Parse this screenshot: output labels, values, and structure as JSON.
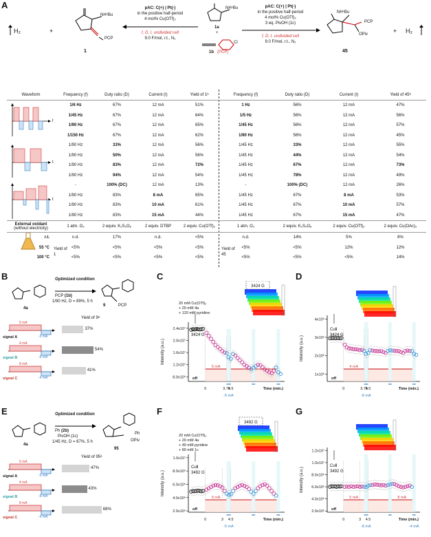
{
  "panel_labels": {
    "a": "A",
    "b": "B",
    "c": "C",
    "d": "D",
    "e": "E",
    "f": "F",
    "g": "G"
  },
  "scheme_a": {
    "h2": "H₂",
    "plus": "+",
    "product_left_id": "1",
    "product_left_groups": [
      "NHⁿBu",
      "PCP"
    ],
    "left_conditions": [
      "pAC: C(+) | Pt(-)",
      "in the positive half-period",
      "4 mol% Cu(OTf)₂",
      "f, D, I, undivided cell",
      "9.0 F/mol, r.t., N₂"
    ],
    "reagent_1a": "1a",
    "reagent_1a_group": "NHⁿBu",
    "reagent_1b": "1b",
    "reagent_1b_group": "(PCP)",
    "reagent_1b_cl": "Cl",
    "right_conditions": [
      "pAC: C(+) | Pt(-)",
      "in the positive half-period",
      "4 mol% Cu(OTf)₂",
      "3 eq. PivOH (1c)",
      "f, D, I, undivided cell",
      "9.0 F/mol, r.t., N₂"
    ],
    "product_right_id": "45",
    "product_right_groups": [
      "NHⁿBu",
      "PCP",
      "OPiv"
    ]
  },
  "table": {
    "headers": [
      "Waveform",
      "Frequency (f)",
      "Duty ratio (D)",
      "Current (I)",
      "Yield of 1ᵃ",
      "Frequency (f)",
      "Duty ratio (D)",
      "Current (I)",
      "Yield of 45ᵃ"
    ],
    "rows": [
      [
        "1/6 Hz",
        "67%",
        "12 mA",
        "51%",
        "1 Hz",
        "56%",
        "12 mA",
        "47%"
      ],
      [
        "1/45 Hz",
        "67%",
        "12 mA",
        "64%",
        "1/5 Hz",
        "56%",
        "12 mA",
        "56%"
      ],
      [
        "1/90 Hz",
        "67%",
        "12 mA",
        "65%",
        "1/45 Hz",
        "56%",
        "12 mA",
        "57%"
      ],
      [
        "1/150 Hz",
        "67%",
        "12 mA",
        "62%",
        "1/90 Hz",
        "56%",
        "12 mA",
        "45%"
      ],
      [
        "1/90 Hz",
        "33%",
        "12 mA",
        "56%",
        "1/45 Hz",
        "33%",
        "12 mA",
        "55%"
      ],
      [
        "1/90 Hz",
        "50%",
        "12 mA",
        "56%",
        "1/45 Hz",
        "44%",
        "12 mA",
        "54%"
      ],
      [
        "1/90 Hz",
        "83%",
        "12 mA",
        "72%",
        "1/45 Hz",
        "67%",
        "12 mA",
        "73%"
      ],
      [
        "1/90 Hz",
        "94%",
        "12 mA",
        "54%",
        "1/45 Hz",
        "78%",
        "12 mA",
        "49%"
      ],
      [
        "-",
        "100% (DC)",
        "12 mA",
        "13%",
        "-",
        "100% (DC)",
        "12 mA",
        "26%"
      ],
      [
        "1/90 Hz",
        "83%",
        "8 mA",
        "65%",
        "1/45 Hz",
        "67%",
        "8 mA",
        "53%"
      ],
      [
        "1/90 Hz",
        "83%",
        "10 mA",
        "61%",
        "1/45 Hz",
        "67%",
        "10 mA",
        "57%"
      ],
      [
        "1/90 Hz",
        "83%",
        "15 mA",
        "44%",
        "1/45 Hz",
        "67%",
        "15 mA",
        "47%"
      ]
    ],
    "external_label": "External oxidant",
    "external_sub": "(without electricity)",
    "external_row": [
      "1 atm. O₂",
      "2 equiv. K₂S₂O₈",
      "2 equiv. DTBP",
      "2 equiv. Cu(OTf)₂",
      "1 atm. O₂",
      "2 equiv. K₂S₂O₈",
      "2 equiv. Cu(OTf)₂",
      "2 equiv. Cu(OAc)₂"
    ],
    "temp_rows": [
      {
        "label": "r.t.",
        "values": [
          "n.d.",
          "17%",
          "n.d.",
          "<5%",
          "n.d.",
          "14%",
          "5%",
          "8%"
        ]
      },
      {
        "label": "55 °C",
        "values": [
          "<5%",
          "<5%",
          "<5%",
          "<5%",
          "<5%",
          "<5%",
          "12%",
          "12%"
        ]
      },
      {
        "label": "100 °C",
        "values": [
          "<5%",
          "<5%",
          "<5%",
          "<5%",
          "<5%",
          "<5%",
          "<5%",
          "14%"
        ]
      }
    ],
    "yield_of_1": "Yield of 1",
    "yield_of_45": "Yield of 45",
    "axis_t": "t"
  },
  "panel_b": {
    "reagent": "4a",
    "alkyne": "PCP",
    "alkyne_id": "(1b)",
    "arrow_top": "Optimized condition",
    "arrow_bottom": "1/90 Hz, D = 89%, 5 h",
    "product": "9",
    "product_group": "PCP",
    "yield_title": "Yield of 9ᵃ",
    "signals": [
      {
        "name": "signal A",
        "top": "5 mA",
        "bottom": "-5 mA",
        "yield": "37%",
        "yield_value": 37
      },
      {
        "name": "signal B",
        "top": "4 mA",
        "bottom": "-8 mA",
        "yield": "54%",
        "yield_value": 54
      },
      {
        "name": "signal C",
        "top": "8 mA",
        "bottom": "-4 mA",
        "yield": "41%",
        "yield_value": 41
      }
    ]
  },
  "panel_e": {
    "reagent": "4a",
    "alkyne": "Ph",
    "alkyne_id": "(2b)",
    "arrow_top": "Optimized condition",
    "arrow_mid": "PivOH (1c)",
    "arrow_bottom": "1/45 Hz, D = 67%, 5 h",
    "product": "95",
    "product_groups": [
      "Ph",
      "OPiv"
    ],
    "yield_title": "Yield of 95ᵃ",
    "signals": [
      {
        "name": "signal A",
        "top": "5 mA",
        "bottom": "-5 mA",
        "yield": "47%",
        "yield_value": 47
      },
      {
        "name": "signal B",
        "top": "4 mA",
        "bottom": "-8 mA",
        "yield": "43%",
        "yield_value": 43
      },
      {
        "name": "signal C",
        "top": "8 mA",
        "bottom": "-4 mA",
        "yield": "68%",
        "yield_value": 68
      }
    ]
  },
  "chart_data": [
    {
      "panel": "C",
      "type": "scatter",
      "legend": [
        "20 mM Cu(OTf)₂",
        "+ 20 mM 4a",
        "+ 120 mM pyridine"
      ],
      "ylabel": "Intensity (a.u.)",
      "xlabel": "Time (min.)",
      "ytick_labels": [
        "8.0x10⁶",
        "1.2x10⁷",
        "1.6x10⁷",
        "2.0x10⁷",
        "2.4x10⁷"
      ],
      "yticks": [
        8000000.0,
        12000000.0,
        16000000.0,
        20000000.0,
        24000000.0
      ],
      "ylim": [
        6500000.0,
        26000000.0
      ],
      "xtick_labels": [
        "0",
        "3.75",
        "4.5"
      ],
      "xticks": [
        0,
        3.75,
        4.5
      ],
      "annotation": "CuⅡ 3424 G",
      "inset_label": "3424 G",
      "off": "off",
      "pulse_top": "5 mA",
      "pulse_bottom": "-5 mA",
      "series": [
        {
          "name": "",
          "x": [
            -2.5,
            -2.2,
            -1.9,
            -1.6,
            -1.3,
            -1.0,
            -0.7,
            -0.4,
            0.2,
            0.6,
            1.0,
            1.4,
            1.8,
            2.2,
            2.6,
            3.0,
            3.4,
            3.75,
            4.1,
            4.5,
            4.9,
            5.3,
            5.7,
            6.1,
            6.5,
            6.9,
            7.3,
            7.7,
            8.1,
            8.5,
            8.9,
            9.3,
            9.7,
            10.1,
            10.5,
            10.9,
            11.3,
            11.7,
            12.1,
            12.5,
            12.9,
            13.3
          ],
          "y": [
            23500000.0,
            23700000.0,
            23600000.0,
            23800000.0,
            23700000.0,
            23600000.0,
            23700000.0,
            23800000.0,
            22500000.0,
            21500000.0,
            20500000.0,
            19500000.0,
            18500000.0,
            17800000.0,
            17200000.0,
            16500000.0,
            16000000.0,
            15800000.0,
            14500000.0,
            14000000.0,
            15500000.0,
            15000000.0,
            14200000.0,
            13500000.0,
            12800000.0,
            12000000.0,
            11500000.0,
            11000000.0,
            10500000.0,
            11000000.0,
            11500000.0,
            12000000.0,
            11800000.0,
            11200000.0,
            10500000.0,
            10000000.0,
            9500000.0,
            9200000.0,
            10000000.0,
            11000000.0,
            9500000.0,
            9000000.0
          ]
        }
      ]
    },
    {
      "panel": "D",
      "type": "scatter",
      "ylabel": "Intensity (a.u.)",
      "xlabel": "Time (min.)",
      "ytick_labels": [
        "1x10⁶",
        "2x10⁶",
        "3x10⁶",
        "4x10⁶"
      ],
      "yticks": [
        1000000.0,
        2000000.0,
        3000000.0,
        4000000.0
      ],
      "ylim": [
        600000.0,
        4200000.0
      ],
      "xtick_labels": [
        "0",
        "3.75",
        "4.5"
      ],
      "xticks": [
        0,
        3.75,
        4.5
      ],
      "annotation": "CuⅡ 3424 G",
      "off": "off",
      "pulse_top": "4 mA",
      "pulse_bottom": "-8 mA",
      "series": [
        {
          "name": "",
          "x": [
            -2.5,
            -2.2,
            -1.9,
            -1.6,
            -1.3,
            -1.0,
            -0.7,
            -0.4,
            0.2,
            0.6,
            1.0,
            1.4,
            1.8,
            2.2,
            2.6,
            3.0,
            3.4,
            3.75,
            4.1,
            4.5,
            4.9,
            5.3,
            5.7,
            6.1,
            6.5,
            6.9,
            7.3,
            7.7,
            8.1,
            8.5,
            8.9,
            9.3,
            9.7,
            10.1,
            10.5,
            10.9,
            11.3,
            11.7,
            12.1,
            12.5,
            12.9,
            13.3
          ],
          "y": [
            2950000.0,
            2960000.0,
            2970000.0,
            2950000.0,
            2960000.0,
            2970000.0,
            2950000.0,
            2960000.0,
            2600000.0,
            2450000.0,
            2400000.0,
            2380000.0,
            2360000.0,
            2350000.0,
            2340000.0,
            2300000.0,
            2320000.0,
            2250000.0,
            2100000.0,
            2150000.0,
            2300000.0,
            2280000.0,
            2260000.0,
            2250000.0,
            2240000.0,
            2250000.0,
            2200000.0,
            2150000.0,
            2250000.0,
            2300000.0,
            2280000.0,
            2270000.0,
            2260000.0,
            2250000.0,
            2200000.0,
            2150000.0,
            2250000.0,
            2280000.0,
            2260000.0,
            2250000.0,
            2100000.0,
            2050000.0
          ]
        }
      ]
    },
    {
      "panel": "F",
      "type": "scatter",
      "legend": [
        "20 mM Cu(OTf)₂",
        "+ 20 mM 4a",
        "+ 40 mM pyridine",
        "+ 80 mM 1c"
      ],
      "ylabel": "Intensity (a.u.)",
      "xlabel": "Time (min.)",
      "ytick_labels": [
        "2.0x10⁶",
        "4.0x10⁶",
        "6.0x10⁶",
        "8.0x10⁶",
        "1.0x10⁷"
      ],
      "yticks": [
        2000000.0,
        4000000.0,
        6000000.0,
        8000000.0,
        10000000.0
      ],
      "ylim": [
        1800000.0,
        10500000.0
      ],
      "xtick_labels": [
        "0",
        "3",
        "4.5"
      ],
      "xticks": [
        0,
        3,
        4.5
      ],
      "annotation": "CuⅡ 3492 G",
      "inset_label": "3492 G",
      "off": "off",
      "pulse_top": "5 mA",
      "pulse_bottom": "-5 mA",
      "series": [
        {
          "name": "",
          "x": [
            -2.5,
            -2.2,
            -1.9,
            -1.6,
            -1.3,
            -1.0,
            -0.7,
            -0.4,
            0.2,
            0.6,
            1.0,
            1.4,
            1.8,
            2.2,
            2.6,
            3.0,
            3.4,
            3.8,
            4.2,
            4.5,
            4.9,
            5.3,
            5.7,
            6.1,
            6.5,
            6.9,
            7.3,
            7.7,
            8.1,
            8.5,
            8.9,
            9.3,
            9.7,
            10.1,
            10.5,
            10.9,
            11.3,
            11.7,
            12.1,
            12.5
          ],
          "y": [
            4900000.0,
            5000000.0,
            4950000.0,
            5000000.0,
            5050000.0,
            5000000.0,
            4950000.0,
            5000000.0,
            5200000.0,
            5400000.0,
            5600000.0,
            5800000.0,
            5900000.0,
            5850000.0,
            5700000.0,
            5500000.0,
            5000000.0,
            4600000.0,
            4400000.0,
            4500000.0,
            5000000.0,
            5400000.0,
            5600000.0,
            5800000.0,
            5900000.0,
            5750000.0,
            5600000.0,
            5300000.0,
            4900000.0,
            4600000.0,
            5000000.0,
            5400000.0,
            5700000.0,
            5900000.0,
            6000000.0,
            5800000.0,
            5400000.0,
            5000000.0,
            4600000.0,
            4300000.0
          ]
        }
      ]
    },
    {
      "panel": "G",
      "type": "scatter",
      "ylabel": "Intensity (a.u.)",
      "xlabel": "Time (min.)",
      "ytick_labels": [
        "2.0x10⁶",
        "4.0x10⁶",
        "6.0x10⁶",
        "8.0x10⁶",
        "1.0x10⁷",
        "1.2x10⁷"
      ],
      "yticks": [
        2000000.0,
        4000000.0,
        6000000.0,
        8000000.0,
        10000000.0,
        12000000.0
      ],
      "ylim": [
        1800000.0,
        12500000.0
      ],
      "xtick_labels": [
        "0",
        "3",
        "4.5"
      ],
      "xticks": [
        0,
        3,
        4.5
      ],
      "annotation": "CuⅡ 3492 G",
      "off": "off",
      "pulse_top": "5 mA",
      "pulse_top2": "8 mA",
      "pulse_bottom": "-8 mA",
      "pulse_bottom2": "-4 mA",
      "series": [
        {
          "name": "",
          "x": [
            -2.5,
            -2.2,
            -1.9,
            -1.6,
            -1.3,
            -1.0,
            -0.7,
            -0.4,
            0.2,
            0.6,
            1.0,
            1.4,
            1.8,
            2.2,
            2.6,
            3.0,
            3.4,
            3.8,
            4.2,
            4.5,
            4.9,
            5.3,
            5.7,
            6.1,
            6.5,
            6.9,
            7.3,
            7.7,
            8.1,
            8.5,
            8.9,
            9.3,
            9.7,
            10.1,
            10.5,
            10.9,
            11.3,
            11.7,
            12.1,
            12.5
          ],
          "y": [
            6000000.0,
            6100000.0,
            6050000.0,
            6100000.0,
            6000000.0,
            6100000.0,
            6050000.0,
            6100000.0,
            6000000.0,
            6050000.0,
            6000000.0,
            6100000.0,
            6000000.0,
            6050000.0,
            6100000.0,
            6000000.0,
            6050000.0,
            6000000.0,
            5950000.0,
            6200000.0,
            6300000.0,
            6300000.0,
            6400000.0,
            6350000.0,
            6300000.0,
            6250000.0,
            6300000.0,
            6200000.0,
            6300000.0,
            6400000.0,
            6500000.0,
            6450000.0,
            6300000.0,
            6100000.0,
            6000000.0,
            5900000.0,
            6000000.0,
            6100000.0,
            6200000.0,
            6000000.0
          ]
        }
      ]
    }
  ]
}
